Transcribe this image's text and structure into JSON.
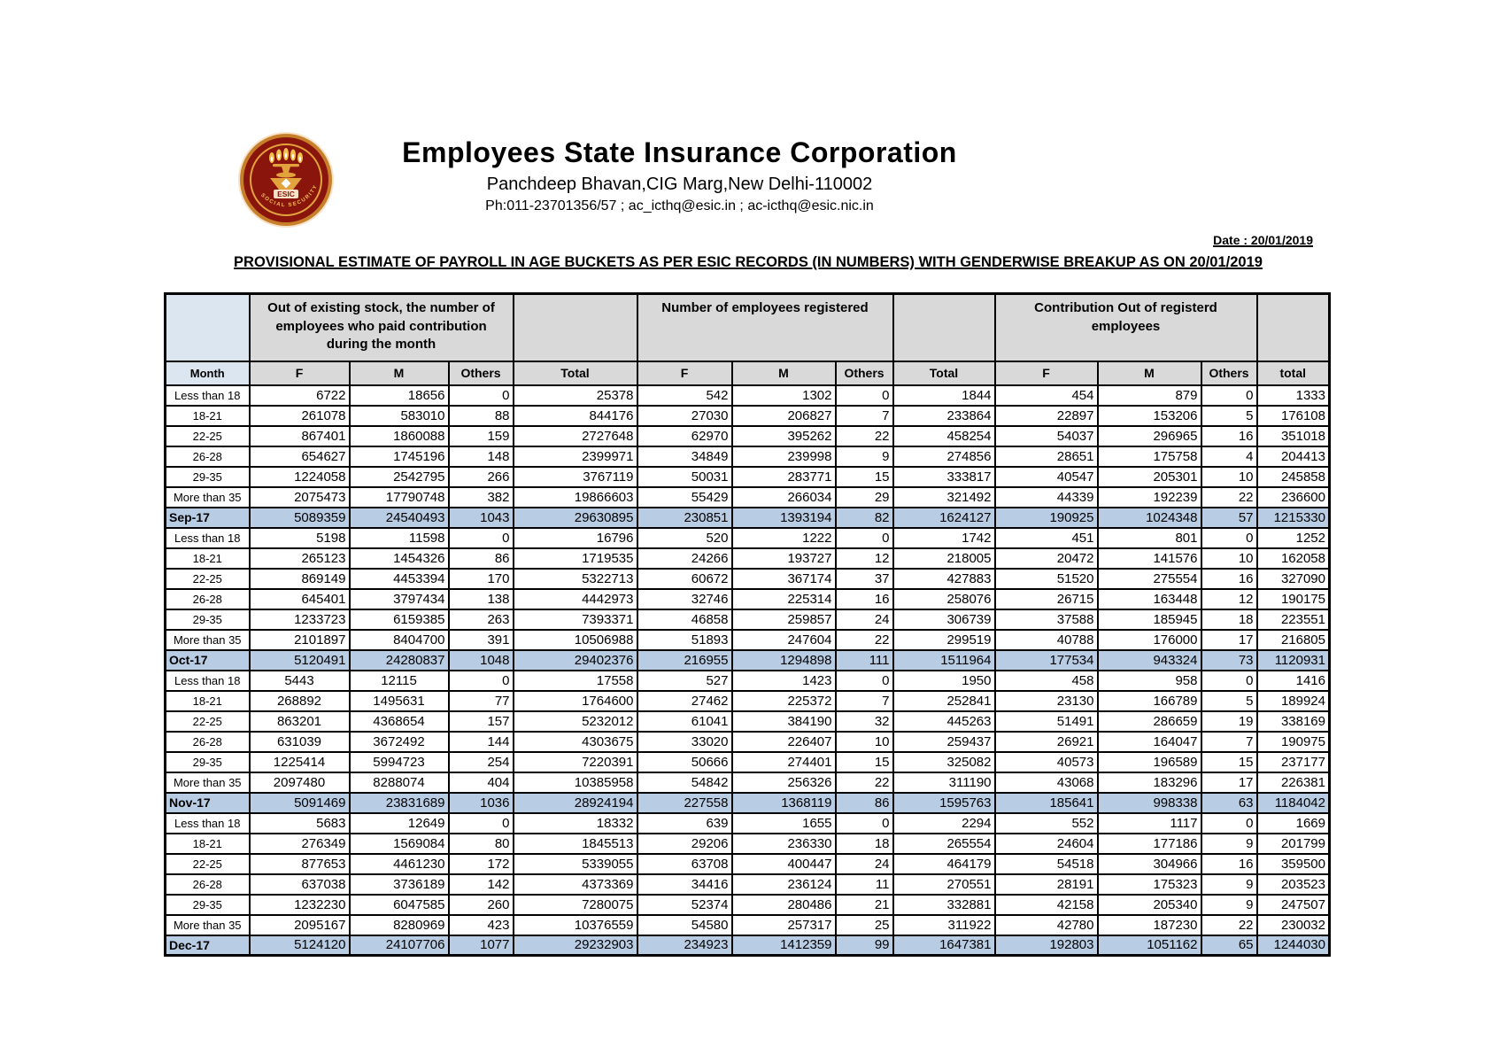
{
  "colors": {
    "summary_row": "#b8cce4",
    "header_blue": "#dce6f1",
    "header_gray": "#d9d9d9",
    "logo_maroon": "#8a150d",
    "logo_gold": "#e2a33c"
  },
  "header": {
    "org_name": "Employees State Insurance Corporation",
    "address": "Panchdeep Bhavan,CIG Marg,New Delhi-110002",
    "contact": "Ph:011-23701356/57 ;  ac_icthq@esic.in ; ac-icthq@esic.nic.in",
    "date_line": "Date : 20/01/2019",
    "report_title": "PROVISIONAL ESTIMATE OF PAYROLL IN AGE BUCKETS AS PER ESIC RECORDS (IN NUMBERS) WITH GENDERWISE BREAKUP AS ON 20/01/2019",
    "logo": {
      "label": "ESIC",
      "ring_text": "SOCIAL SECURITY"
    }
  },
  "table": {
    "group_headers": [
      "Out of existing stock, the number of employees who paid contribution during the month",
      "Number of employees registered",
      "Contribution  Out of  registerd employees"
    ],
    "column_headers": [
      "Month",
      "F",
      "M",
      "Others",
      "Total",
      "F",
      "M",
      "Others",
      "Total",
      "F",
      "M",
      "Others",
      "total"
    ],
    "groups": [
      {
        "summary_label": "Sep-17",
        "rows": [
          {
            "label": "Less than 18",
            "values": [
              6722,
              18656,
              0,
              25378,
              542,
              1302,
              0,
              1844,
              454,
              879,
              0,
              1333
            ]
          },
          {
            "label": "18-21",
            "values": [
              261078,
              583010,
              88,
              844176,
              27030,
              206827,
              7,
              233864,
              22897,
              153206,
              5,
              176108
            ]
          },
          {
            "label": "22-25",
            "values": [
              867401,
              1860088,
              159,
              2727648,
              62970,
              395262,
              22,
              458254,
              54037,
              296965,
              16,
              351018
            ]
          },
          {
            "label": "26-28",
            "values": [
              654627,
              1745196,
              148,
              2399971,
              34849,
              239998,
              9,
              274856,
              28651,
              175758,
              4,
              204413
            ]
          },
          {
            "label": "29-35",
            "values": [
              1224058,
              2542795,
              266,
              3767119,
              50031,
              283771,
              15,
              333817,
              40547,
              205301,
              10,
              245858
            ]
          },
          {
            "label": "More than 35",
            "values": [
              2075473,
              17790748,
              382,
              19866603,
              55429,
              266034,
              29,
              321492,
              44339,
              192239,
              22,
              236600
            ]
          }
        ],
        "summary_values": [
          5089359,
          24540493,
          1043,
          29630895,
          230851,
          1393194,
          82,
          1624127,
          190925,
          1024348,
          57,
          1215330
        ]
      },
      {
        "summary_label": "Oct-17",
        "rows": [
          {
            "label": "Less than 18",
            "values": [
              5198,
              11598,
              0,
              16796,
              520,
              1222,
              0,
              1742,
              451,
              801,
              0,
              1252
            ]
          },
          {
            "label": "18-21",
            "values": [
              265123,
              1454326,
              86,
              1719535,
              24266,
              193727,
              12,
              218005,
              20472,
              141576,
              10,
              162058
            ]
          },
          {
            "label": "22-25",
            "values": [
              869149,
              4453394,
              170,
              5322713,
              60672,
              367174,
              37,
              427883,
              51520,
              275554,
              16,
              327090
            ]
          },
          {
            "label": "26-28",
            "values": [
              645401,
              3797434,
              138,
              4442973,
              32746,
              225314,
              16,
              258076,
              26715,
              163448,
              12,
              190175
            ]
          },
          {
            "label": "29-35",
            "values": [
              1233723,
              6159385,
              263,
              7393371,
              46858,
              259857,
              24,
              306739,
              37588,
              185945,
              18,
              223551
            ]
          },
          {
            "label": "More than 35",
            "values": [
              2101897,
              8404700,
              391,
              10506988,
              51893,
              247604,
              22,
              299519,
              40788,
              176000,
              17,
              216805
            ]
          }
        ],
        "summary_values": [
          5120491,
          24280837,
          1048,
          29402376,
          216955,
          1294898,
          111,
          1511964,
          177534,
          943324,
          73,
          1120931
        ]
      },
      {
        "summary_label": "Nov-17",
        "rows": [
          {
            "label": "Less than 18",
            "values": [
              5443,
              12115,
              0,
              17558,
              527,
              1423,
              0,
              1950,
              458,
              958,
              0,
              1416
            ]
          },
          {
            "label": "18-21",
            "values": [
              268892,
              1495631,
              77,
              1764600,
              27462,
              225372,
              7,
              252841,
              23130,
              166789,
              5,
              189924
            ]
          },
          {
            "label": "22-25",
            "values": [
              863201,
              4368654,
              157,
              5232012,
              61041,
              384190,
              32,
              445263,
              51491,
              286659,
              19,
              338169
            ]
          },
          {
            "label": "26-28",
            "values": [
              631039,
              3672492,
              144,
              4303675,
              33020,
              226407,
              10,
              259437,
              26921,
              164047,
              7,
              190975
            ]
          },
          {
            "label": "29-35",
            "values": [
              1225414,
              5994723,
              254,
              7220391,
              50666,
              274401,
              15,
              325082,
              40573,
              196589,
              15,
              237177
            ]
          },
          {
            "label": "More than 35",
            "values": [
              2097480,
              8288074,
              404,
              10385958,
              54842,
              256326,
              22,
              311190,
              43068,
              183296,
              17,
              226381
            ]
          }
        ],
        "summary_values": [
          5091469,
          23831689,
          1036,
          28924194,
          227558,
          1368119,
          86,
          1595763,
          185641,
          998338,
          63,
          1184042
        ]
      },
      {
        "summary_label": "Dec-17",
        "rows": [
          {
            "label": "Less than 18",
            "values": [
              5683,
              12649,
              0,
              18332,
              639,
              1655,
              0,
              2294,
              552,
              1117,
              0,
              1669
            ]
          },
          {
            "label": "18-21",
            "values": [
              276349,
              1569084,
              80,
              1845513,
              29206,
              236330,
              18,
              265554,
              24604,
              177186,
              9,
              201799
            ]
          },
          {
            "label": "22-25",
            "values": [
              877653,
              4461230,
              172,
              5339055,
              63708,
              400447,
              24,
              464179,
              54518,
              304966,
              16,
              359500
            ]
          },
          {
            "label": "26-28",
            "values": [
              637038,
              3736189,
              142,
              4373369,
              34416,
              236124,
              11,
              270551,
              28191,
              175323,
              9,
              203523
            ]
          },
          {
            "label": "29-35",
            "values": [
              1232230,
              6047585,
              260,
              7280075,
              52374,
              280486,
              21,
              332881,
              42158,
              205340,
              9,
              247507
            ]
          },
          {
            "label": "More than 35",
            "values": [
              2095167,
              8280969,
              423,
              10376559,
              54580,
              257317,
              25,
              311922,
              42780,
              187230,
              22,
              230032
            ]
          }
        ],
        "summary_values": [
          5124120,
          24107706,
          1077,
          29232903,
          234923,
          1412359,
          99,
          1647381,
          192803,
          1051162,
          65,
          1244030
        ]
      }
    ]
  }
}
